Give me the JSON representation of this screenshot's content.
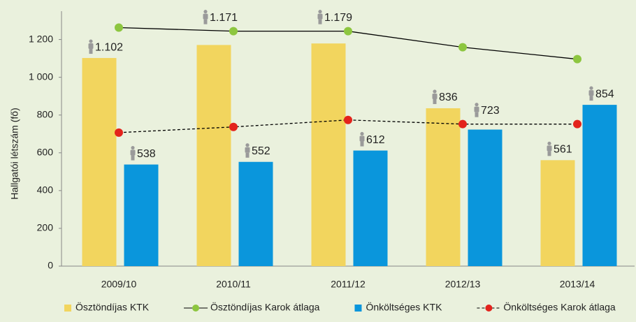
{
  "chart_data": {
    "type": "bar",
    "y_label": "Hallgatói létszám (fő)",
    "categories": [
      "2009/10",
      "2010/11",
      "2011/12",
      "2012/13",
      "2013/14"
    ],
    "series": [
      {
        "name": "Ösztöndíjas KTK",
        "type": "bar",
        "color": "#f2d55e",
        "values": [
          1102,
          1171,
          1179,
          836,
          561
        ],
        "value_labels": [
          "1.102",
          "1.171",
          "1.179",
          "836",
          "561"
        ]
      },
      {
        "name": "Ösztöndíjas Karok átlaga",
        "type": "line",
        "color": "#8dc63f",
        "line_color": "#000000",
        "dashed": false,
        "values": [
          1263,
          1244,
          1244,
          1159,
          1096
        ]
      },
      {
        "name": "Önköltséges KTK",
        "type": "bar",
        "color": "#0a96dc",
        "values": [
          538,
          552,
          612,
          723,
          854
        ],
        "value_labels": [
          "538",
          "552",
          "612",
          "723",
          "854"
        ]
      },
      {
        "name": "Önköltséges Karok átlaga",
        "type": "line",
        "color": "#e3231c",
        "line_color": "#000000",
        "dashed": true,
        "values": [
          707,
          737,
          774,
          752,
          752
        ]
      }
    ],
    "ylim": [
      0,
      1350
    ],
    "yticks": [
      0,
      200,
      400,
      600,
      800,
      {
        "value": 1000,
        "label": "1 000"
      },
      {
        "value": 1200,
        "label": "1 200"
      }
    ],
    "legend": "bottom"
  }
}
